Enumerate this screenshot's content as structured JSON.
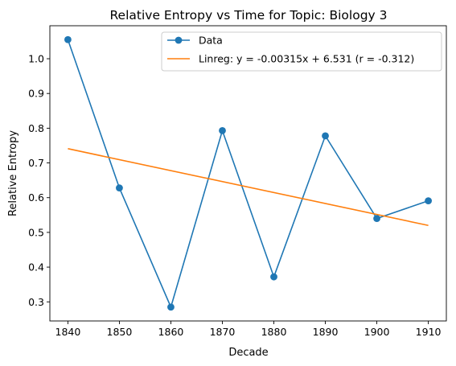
{
  "chart_data": {
    "type": "line",
    "title": "Relative Entropy vs Time for Topic: Biology 3",
    "xlabel": "Decade",
    "ylabel": "Relative Entropy",
    "xlim": [
      1836.5,
      1913.5
    ],
    "ylim": [
      0.245,
      1.095
    ],
    "xticks": [
      1840,
      1850,
      1860,
      1870,
      1880,
      1890,
      1900,
      1910
    ],
    "yticks": [
      0.3,
      0.4,
      0.5,
      0.6,
      0.7,
      0.8,
      0.9,
      1.0
    ],
    "grid": false,
    "legend_position": "upper-right",
    "series": [
      {
        "name": "Data",
        "style": "line-marker",
        "color": "#1f77b4",
        "x": [
          1840,
          1850,
          1860,
          1870,
          1880,
          1890,
          1900,
          1910
        ],
        "y": [
          1.055,
          0.628,
          0.285,
          0.793,
          0.372,
          0.778,
          0.54,
          0.591
        ]
      },
      {
        "name": "Linreg: y = -0.00315x + 6.531 (r = -0.312)",
        "style": "line",
        "color": "#ff7f0e",
        "x": [
          1840,
          1910
        ],
        "y": [
          0.741,
          0.52
        ]
      }
    ]
  }
}
